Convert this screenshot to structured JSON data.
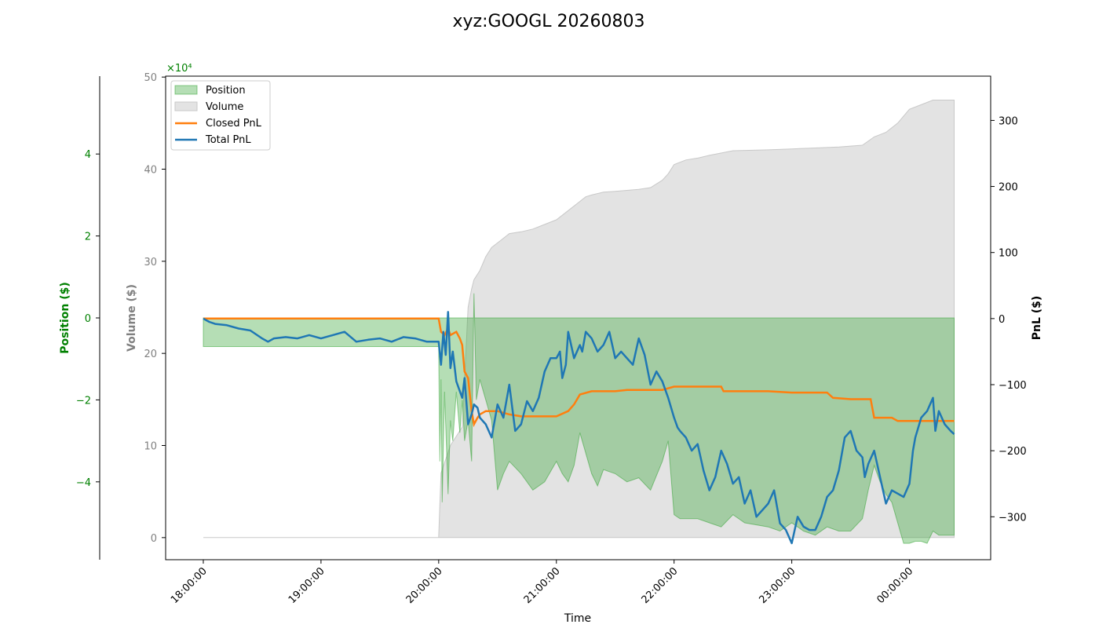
{
  "chart_data": {
    "type": "area",
    "title": "xyz:GOOGL 20260803",
    "xlabel": "Time",
    "x_ticks": [
      "18:00:00",
      "19:00:00",
      "20:00:00",
      "21:00:00",
      "22:00:00",
      "23:00:00",
      "00:00:00"
    ],
    "x_range_hours": [
      17.68,
      24.69
    ],
    "axes": {
      "position": {
        "label": "Position ($)",
        "color": "#008000",
        "multiplier_label": "×10⁴",
        "ticks": [
          4,
          2,
          0,
          -2,
          -4
        ],
        "tick_labels": [
          "4",
          "2",
          "0",
          "−2",
          "−4"
        ],
        "range": [
          -5.9,
          5.9
        ]
      },
      "volume": {
        "label": "Volume ($)",
        "color": "#808080",
        "ticks": [
          50,
          40,
          30,
          20,
          10,
          0
        ],
        "tick_labels": [
          "50",
          "40",
          "30",
          "20",
          "10",
          "0"
        ],
        "range": [
          -2.4,
          50.1
        ]
      },
      "pnl": {
        "label": "PnL ($)",
        "color": "#000000",
        "ticks": [
          300,
          200,
          100,
          0,
          -100,
          -200,
          -300
        ],
        "tick_labels": [
          "300",
          "200",
          "100",
          "0",
          "−100",
          "−200",
          "−300"
        ],
        "range": [
          -365,
          367
        ]
      }
    },
    "legend": {
      "placement": "upper-left",
      "entries": [
        "Position",
        "Volume",
        "Closed PnL",
        "Total PnL"
      ]
    },
    "colors": {
      "position": "#2ca02c",
      "volume": "#c8c8c8",
      "closed_pnl": "#ff7f0e",
      "total_pnl": "#1f77b4"
    },
    "series": [
      {
        "name": "Volume",
        "axis": "volume",
        "kind": "area",
        "x": [
          18.0,
          20.0,
          20.02,
          20.1,
          20.2,
          20.25,
          20.28,
          20.3,
          20.35,
          20.4,
          20.45,
          20.5,
          20.6,
          20.7,
          20.8,
          20.9,
          21.0,
          21.1,
          21.2,
          21.25,
          21.3,
          21.4,
          21.5,
          21.6,
          21.7,
          21.8,
          21.9,
          21.95,
          22.0,
          22.1,
          22.2,
          22.3,
          22.5,
          22.8,
          23.0,
          23.2,
          23.4,
          23.6,
          23.7,
          23.8,
          23.9,
          24.0,
          24.1,
          24.2,
          24.38
        ],
        "values": [
          0,
          0,
          7,
          10,
          12,
          25,
          27,
          28,
          29,
          30.5,
          31.5,
          32,
          33,
          33.2,
          33.5,
          34,
          34.5,
          35.5,
          36.5,
          37,
          37.2,
          37.5,
          37.6,
          37.7,
          37.8,
          38,
          38.8,
          39.5,
          40.5,
          41,
          41.2,
          41.5,
          42,
          42.1,
          42.2,
          42.3,
          42.4,
          42.6,
          43.5,
          44,
          45,
          46.5,
          47,
          47.5,
          47.5
        ]
      },
      {
        "name": "Position",
        "axis": "position",
        "kind": "area",
        "x": [
          18.0,
          20.0,
          20.01,
          20.02,
          20.03,
          20.05,
          20.08,
          20.1,
          20.12,
          20.15,
          20.18,
          20.2,
          20.22,
          20.25,
          20.28,
          20.3,
          20.32,
          20.35,
          20.4,
          20.45,
          20.5,
          20.55,
          20.6,
          20.7,
          20.8,
          20.9,
          21.0,
          21.05,
          21.1,
          21.15,
          21.2,
          21.3,
          21.35,
          21.4,
          21.5,
          21.6,
          21.7,
          21.8,
          21.9,
          21.95,
          22.0,
          22.05,
          22.1,
          22.2,
          22.3,
          22.4,
          22.5,
          22.6,
          22.8,
          22.9,
          23.0,
          23.1,
          23.2,
          23.3,
          23.4,
          23.5,
          23.6,
          23.65,
          23.7,
          23.75,
          23.8,
          23.85,
          23.9,
          23.95,
          24.0,
          24.05,
          24.1,
          24.15,
          24.2,
          24.25,
          24.38
        ],
        "values": [
          -0.7,
          -0.7,
          -3.5,
          -1.5,
          -4.5,
          -1.8,
          -4.3,
          -2.5,
          -3.0,
          -1.8,
          -2.8,
          -2.0,
          -3.0,
          -2.5,
          -3.5,
          0.6,
          -2.0,
          -1.5,
          -2.0,
          -2.5,
          -4.2,
          -3.8,
          -3.5,
          -3.8,
          -4.2,
          -4.0,
          -3.5,
          -3.8,
          -4.0,
          -3.6,
          -2.8,
          -3.8,
          -4.1,
          -3.7,
          -3.8,
          -4.0,
          -3.9,
          -4.2,
          -3.5,
          -3.0,
          -4.8,
          -4.9,
          -4.9,
          -4.9,
          -5.0,
          -5.1,
          -4.8,
          -5.0,
          -5.1,
          -5.2,
          -5.0,
          -5.2,
          -5.3,
          -5.1,
          -5.2,
          -5.2,
          -4.9,
          -4.2,
          -3.6,
          -4.0,
          -4.3,
          -4.5,
          -5.0,
          -5.5,
          -5.5,
          -5.45,
          -5.45,
          -5.5,
          -5.2,
          -5.3,
          -5.3
        ]
      },
      {
        "name": "Closed PnL",
        "axis": "pnl",
        "kind": "line",
        "x": [
          18.0,
          20.0,
          20.02,
          20.05,
          20.08,
          20.1,
          20.15,
          20.18,
          20.2,
          20.22,
          20.25,
          20.28,
          20.3,
          20.33,
          20.35,
          20.4,
          20.5,
          20.6,
          20.7,
          20.8,
          20.9,
          21.0,
          21.1,
          21.15,
          21.2,
          21.3,
          21.4,
          21.5,
          21.6,
          21.7,
          21.8,
          21.9,
          22.0,
          22.2,
          22.4,
          22.42,
          22.6,
          22.8,
          23.0,
          23.3,
          23.35,
          23.5,
          23.6,
          23.67,
          23.7,
          23.8,
          23.85,
          23.9,
          24.0,
          24.2,
          24.38
        ],
        "values": [
          0,
          0,
          -20,
          -25,
          -15,
          -25,
          -20,
          -30,
          -40,
          -80,
          -90,
          -140,
          -160,
          -150,
          -145,
          -140,
          -140,
          -145,
          -148,
          -148,
          -148,
          -148,
          -140,
          -130,
          -115,
          -110,
          -110,
          -110,
          -108,
          -108,
          -108,
          -108,
          -103,
          -103,
          -103,
          -110,
          -110,
          -110,
          -112,
          -112,
          -120,
          -122,
          -122,
          -122,
          -150,
          -150,
          -150,
          -155,
          -155,
          -155,
          -155
        ]
      },
      {
        "name": "Total PnL",
        "axis": "pnl",
        "kind": "line",
        "x": [
          18.0,
          18.05,
          18.1,
          18.2,
          18.3,
          18.4,
          18.5,
          18.55,
          18.6,
          18.7,
          18.8,
          18.9,
          19.0,
          19.1,
          19.2,
          19.3,
          19.4,
          19.5,
          19.6,
          19.7,
          19.8,
          19.9,
          20.0,
          20.02,
          20.04,
          20.06,
          20.08,
          20.1,
          20.12,
          20.15,
          20.18,
          20.2,
          20.22,
          20.25,
          20.28,
          20.3,
          20.33,
          20.35,
          20.4,
          20.45,
          20.5,
          20.55,
          20.6,
          20.65,
          20.7,
          20.75,
          20.8,
          20.85,
          20.9,
          20.95,
          21.0,
          21.03,
          21.05,
          21.08,
          21.1,
          21.15,
          21.2,
          21.22,
          21.25,
          21.3,
          21.35,
          21.4,
          21.45,
          21.5,
          21.55,
          21.6,
          21.65,
          21.7,
          21.75,
          21.8,
          21.85,
          21.9,
          21.95,
          22.0,
          22.03,
          22.05,
          22.1,
          22.15,
          22.2,
          22.25,
          22.3,
          22.35,
          22.4,
          22.45,
          22.5,
          22.55,
          22.6,
          22.65,
          22.7,
          22.75,
          22.8,
          22.85,
          22.9,
          22.95,
          23.0,
          23.05,
          23.1,
          23.15,
          23.2,
          23.25,
          23.3,
          23.35,
          23.4,
          23.45,
          23.5,
          23.55,
          23.6,
          23.62,
          23.65,
          23.7,
          23.75,
          23.8,
          23.85,
          23.9,
          23.95,
          24.0,
          24.03,
          24.05,
          24.1,
          24.15,
          24.2,
          24.22,
          24.25,
          24.3,
          24.35,
          24.38
        ],
        "values": [
          0,
          -5,
          -8,
          -10,
          -15,
          -18,
          -30,
          -35,
          -30,
          -28,
          -30,
          -25,
          -30,
          -25,
          -20,
          -35,
          -32,
          -30,
          -35,
          -28,
          -30,
          -35,
          -35,
          -70,
          -20,
          -55,
          10,
          -75,
          -50,
          -95,
          -110,
          -120,
          -90,
          -160,
          -145,
          -130,
          -135,
          -150,
          -160,
          -180,
          -130,
          -150,
          -100,
          -170,
          -160,
          -125,
          -140,
          -120,
          -80,
          -60,
          -60,
          -50,
          -90,
          -70,
          -20,
          -60,
          -40,
          -50,
          -20,
          -30,
          -50,
          -40,
          -20,
          -60,
          -50,
          -60,
          -70,
          -30,
          -55,
          -100,
          -80,
          -95,
          -120,
          -150,
          -165,
          -170,
          -180,
          -200,
          -190,
          -230,
          -260,
          -240,
          -200,
          -220,
          -250,
          -240,
          -280,
          -260,
          -300,
          -290,
          -280,
          -260,
          -310,
          -320,
          -340,
          -300,
          -315,
          -320,
          -320,
          -300,
          -270,
          -260,
          -230,
          -180,
          -170,
          -200,
          -210,
          -240,
          -220,
          -200,
          -240,
          -280,
          -260,
          -265,
          -270,
          -250,
          -200,
          -180,
          -150,
          -140,
          -120,
          -170,
          -140,
          -160,
          -170,
          -175
        ]
      }
    ]
  }
}
